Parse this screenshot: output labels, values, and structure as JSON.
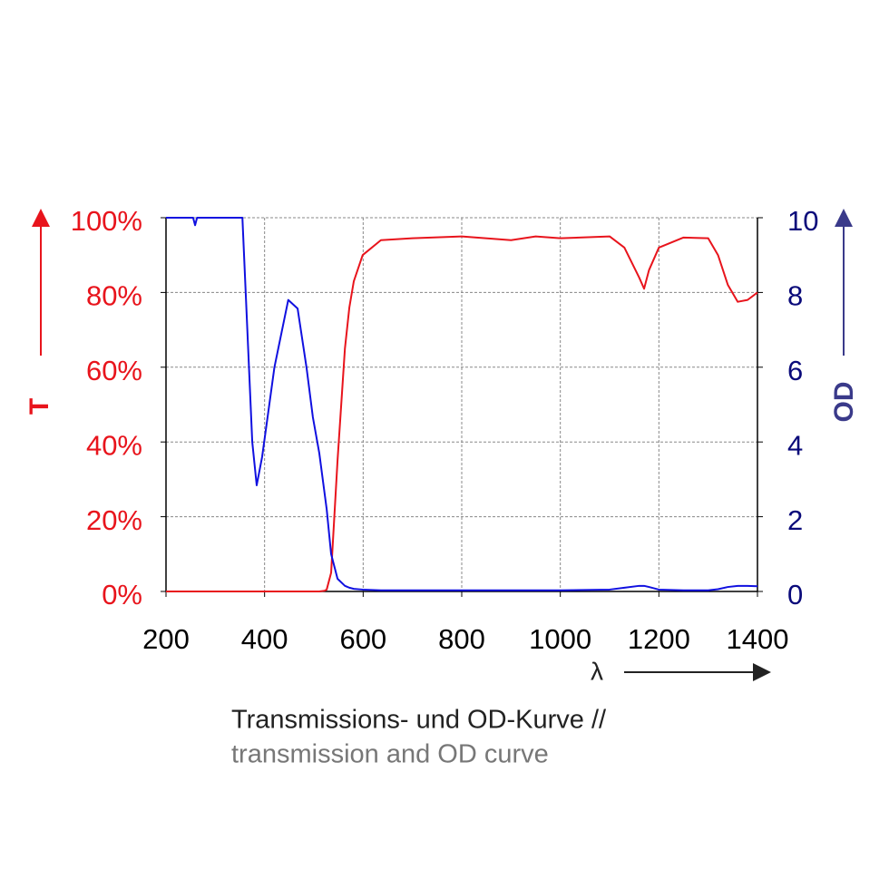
{
  "chart_data": {
    "type": "line",
    "ylabel": "T",
    "y2label": "OD",
    "xlabel": "λ",
    "caption": "Transmissions- und OD-Kurve //",
    "caption_en": "transmission and OD curve",
    "x": [
      200,
      240,
      255,
      259,
      263,
      300,
      355,
      365,
      375,
      384,
      395,
      420,
      448,
      467,
      485,
      498,
      511,
      522,
      526,
      535,
      548,
      563,
      572,
      581,
      599,
      636,
      700,
      800,
      900,
      950,
      1000,
      1100,
      1130,
      1160,
      1170,
      1180,
      1200,
      1250,
      1300,
      1320,
      1340,
      1360,
      1380,
      1400
    ],
    "series": [
      {
        "color": "#e8141c",
        "values": [
          0,
          0,
          0,
          0,
          0,
          0,
          0,
          0,
          0,
          0,
          0,
          0,
          0,
          0,
          0,
          0,
          0,
          0.2,
          0.5,
          5,
          35,
          65,
          76,
          83,
          90,
          94,
          94.5,
          95,
          94,
          95,
          94.5,
          95,
          92,
          84,
          81,
          86,
          92,
          94.7,
          94.5,
          90,
          82,
          77.5,
          78,
          80
        ]
      },
      {
        "color": "#1010e0",
        "axis": "y2",
        "values": [
          10,
          10,
          10,
          9.8,
          10,
          10,
          10,
          7,
          4,
          2.84,
          3.6,
          6,
          7.8,
          7.57,
          6,
          4.66,
          3.7,
          2.6,
          2.2,
          1.0,
          0.34,
          0.15,
          0.1,
          0.07,
          0.05,
          0.03,
          0.03,
          0.03,
          0.03,
          0.03,
          0.03,
          0.05,
          0.1,
          0.15,
          0.15,
          0.12,
          0.05,
          0.03,
          0.03,
          0.06,
          0.12,
          0.15,
          0.15,
          0.14
        ]
      }
    ],
    "xlim": [
      200,
      1400
    ],
    "xticks": [
      200,
      400,
      600,
      800,
      1000,
      1200,
      1400
    ],
    "ylim": [
      0,
      100
    ],
    "yticks": [
      {
        "value": 0,
        "label": "0%"
      },
      {
        "value": 20,
        "label": "20%"
      },
      {
        "value": 40,
        "label": "40%"
      },
      {
        "value": 60,
        "label": "60%"
      },
      {
        "value": 80,
        "label": "80%"
      },
      {
        "value": 100,
        "label": "100%"
      }
    ],
    "y2lim": [
      0,
      10
    ],
    "y2ticks": [
      0,
      2,
      4,
      6,
      8,
      10
    ],
    "grid": true
  }
}
